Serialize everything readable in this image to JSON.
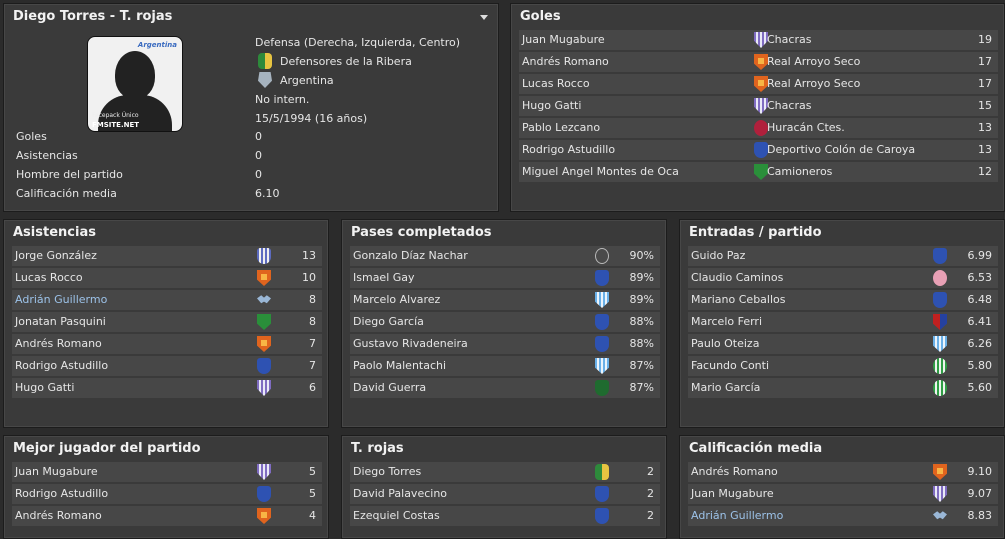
{
  "player": {
    "title": "Diego Torres - T. rojas",
    "position": "Defensa (Derecha, Izquierda, Centro)",
    "club": "Defensores de la Ribera",
    "club_icon": "club-crest-green-yellow",
    "nation": "Argentina",
    "nation_icon": "afa-crest",
    "intl": "No intern.",
    "dob": "15/5/1994 (16 años)",
    "photo_caption1": "Facepack Único",
    "photo_caption2": "FMSITE.NET",
    "photo_logo": "Argentina",
    "stats": [
      {
        "label": "Goles",
        "value": "0"
      },
      {
        "label": "Asistencias",
        "value": "0"
      },
      {
        "label": "Hombre del partido",
        "value": "0"
      },
      {
        "label": "Calificación media",
        "value": "6.10"
      }
    ]
  },
  "goles": {
    "title": "Goles",
    "rows": [
      {
        "name": "Juan Mugabure",
        "club": "Chacras",
        "crest": "stripe",
        "value": "19"
      },
      {
        "name": "Andrés Romano",
        "club": "Real Arroyo Seco",
        "crest": "orange",
        "value": "17"
      },
      {
        "name": "Lucas Rocco",
        "club": "Real Arroyo Seco",
        "crest": "orange",
        "value": "17"
      },
      {
        "name": "Hugo Gatti",
        "club": "Chacras",
        "crest": "stripe",
        "value": "15"
      },
      {
        "name": "Pablo Lezcano",
        "club": "Huracán Ctes.",
        "crest": "red",
        "value": "13"
      },
      {
        "name": "Rodrigo Astudillo",
        "club": "Deportivo Colón de Caroya",
        "crest": "blue",
        "value": "13"
      },
      {
        "name": "Miguel Angel Montes de Oca",
        "club": "Camioneros",
        "crest": "green",
        "value": "12"
      }
    ]
  },
  "asistencias": {
    "title": "Asistencias",
    "rows": [
      {
        "name": "Jorge González",
        "crest": "stripe2",
        "value": "13",
        "link": false
      },
      {
        "name": "Lucas Rocco",
        "crest": "orange",
        "value": "10",
        "link": false
      },
      {
        "name": "Adrián Guillermo",
        "crest": "wing",
        "value": "8",
        "link": true
      },
      {
        "name": "Jonatan Pasquini",
        "crest": "green",
        "value": "8",
        "link": false
      },
      {
        "name": "Andrés Romano",
        "crest": "orange",
        "value": "7",
        "link": false
      },
      {
        "name": "Rodrigo Astudillo",
        "crest": "blue",
        "value": "7",
        "link": false
      },
      {
        "name": "Hugo Gatti",
        "crest": "stripe",
        "value": "6",
        "link": false
      }
    ]
  },
  "pases": {
    "title": "Pases completados",
    "rows": [
      {
        "name": "Gonzalo Díaz Nachar",
        "crest": "dark",
        "value": "90%",
        "link": false
      },
      {
        "name": "Ismael Gay",
        "crest": "blue",
        "value": "89%",
        "link": false
      },
      {
        "name": "Marcelo Alvarez",
        "crest": "lightblue",
        "value": "89%",
        "link": false
      },
      {
        "name": "Diego García",
        "crest": "blue",
        "value": "88%",
        "link": false
      },
      {
        "name": "Gustavo Rivadeneira",
        "crest": "blue",
        "value": "88%",
        "link": false
      },
      {
        "name": "Paolo Malentachi",
        "crest": "lightblue",
        "value": "87%",
        "link": false
      },
      {
        "name": "David Guerra",
        "crest": "darkgreen",
        "value": "87%",
        "link": false
      }
    ]
  },
  "entradas": {
    "title": "Entradas / partido",
    "rows": [
      {
        "name": "Guido Paz",
        "crest": "blue",
        "value": "6.99",
        "link": false
      },
      {
        "name": "Claudio Caminos",
        "crest": "pink",
        "value": "6.53",
        "link": false
      },
      {
        "name": "Mariano Ceballos",
        "crest": "blue",
        "value": "6.48",
        "link": false
      },
      {
        "name": "Marcelo Ferri",
        "crest": "redblue",
        "value": "6.41",
        "link": false
      },
      {
        "name": "Paulo Oteiza",
        "crest": "lightblue",
        "value": "6.26",
        "link": false
      },
      {
        "name": "Facundo Conti",
        "crest": "greenstripe",
        "value": "5.80",
        "link": false
      },
      {
        "name": "Mario García",
        "crest": "greenstripe",
        "value": "5.60",
        "link": false
      }
    ]
  },
  "mejor": {
    "title": "Mejor jugador del partido",
    "rows": [
      {
        "name": "Juan Mugabure",
        "crest": "stripe",
        "value": "5",
        "link": false
      },
      {
        "name": "Rodrigo Astudillo",
        "crest": "blue",
        "value": "5",
        "link": false
      },
      {
        "name": "Andrés Romano",
        "crest": "orange",
        "value": "4",
        "link": false
      }
    ]
  },
  "trojas": {
    "title": "T. rojas",
    "rows": [
      {
        "name": "Diego Torres",
        "crest": "gb",
        "value": "2",
        "link": false
      },
      {
        "name": "David Palavecino",
        "crest": "blue",
        "value": "2",
        "link": false
      },
      {
        "name": "Ezequiel Costas",
        "crest": "blue",
        "value": "2",
        "link": false
      }
    ]
  },
  "calificacion": {
    "title": "Calificación media",
    "rows": [
      {
        "name": "Andrés Romano",
        "crest": "orange",
        "value": "9.10",
        "link": false
      },
      {
        "name": "Juan Mugabure",
        "crest": "stripe",
        "value": "9.07",
        "link": false
      },
      {
        "name": "Adrián Guillermo",
        "crest": "wing",
        "value": "8.83",
        "link": true
      }
    ]
  }
}
